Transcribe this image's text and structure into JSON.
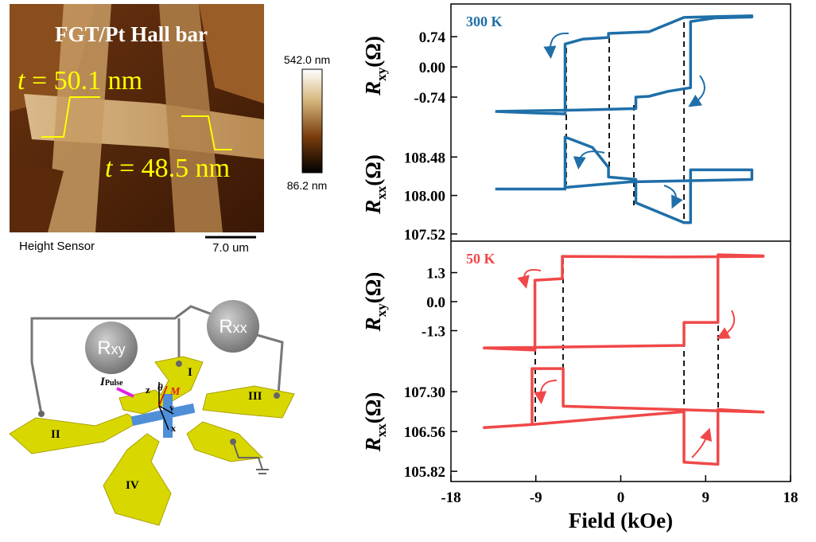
{
  "afm": {
    "title": "FGT/Pt Hall bar",
    "thickness_1": {
      "symbol": "t",
      "text": " = 50.1 nm"
    },
    "thickness_2": {
      "symbol": "t",
      "text": " = 48.5 nm"
    },
    "colorbar_max": "542.0 nm",
    "colorbar_min": "86.2 nm",
    "channel": "Height Sensor",
    "scale_bar": "7.0 um"
  },
  "device": {
    "meter_1": {
      "symbol": "R",
      "sub": "xy"
    },
    "meter_2": {
      "symbol": "R",
      "sub": "xx"
    },
    "pads": [
      "I",
      "II",
      "III",
      "IV"
    ],
    "current": {
      "symbol": "I",
      "sub": "Pulse"
    },
    "axes": {
      "z": "z",
      "theta": "θ",
      "m": "M",
      "y": "y",
      "x": "x"
    }
  },
  "chart_data": [
    {
      "type": "line",
      "annotation": "300 K",
      "annotation_color": "#1f6fa8",
      "ylabel": {
        "symbol": "R",
        "sub": "xy",
        "unit": "(Ω)"
      },
      "xlim": [
        -18,
        18
      ],
      "ylim": [
        -1.48,
        1.54
      ],
      "yticks": [
        0.74,
        {
          "value": 0,
          "label": "0.00"
        },
        -0.74
      ],
      "x": [
        -13.3,
        -9,
        -5.9,
        -5.9,
        -4,
        -1.3,
        -1.3,
        3,
        6.7,
        10,
        13.9,
        13.9,
        10,
        7.4,
        7.4,
        5,
        3,
        1.6,
        1.6,
        -5,
        -13.3
      ],
      "series": [
        {
          "color": "#1f6fa8",
          "values": [
            -1.09,
            -1.13,
            -1.15,
            0.56,
            0.68,
            0.72,
            0.82,
            0.86,
            1.21,
            1.23,
            1.25,
            1.22,
            1.2,
            1.11,
            -0.51,
            -0.6,
            -0.72,
            -0.74,
            -1.02,
            -1.06,
            -1.09
          ]
        }
      ]
    },
    {
      "type": "line",
      "ylabel": {
        "symbol": "R",
        "sub": "xx",
        "unit": "(Ω)"
      },
      "xlim": [
        -18,
        18
      ],
      "ylim": [
        107.43,
        108.85
      ],
      "yticks": [
        108.48,
        {
          "value": 108,
          "label": "108.00"
        },
        107.52
      ],
      "x": [
        -13.3,
        -5.9,
        -5.9,
        -3,
        -1.3,
        -1.3,
        1.6,
        1.6,
        6.7,
        7.4,
        7.4,
        13.9,
        13.9,
        1,
        -5.9
      ],
      "series": [
        {
          "color": "#1f6fa8",
          "values": [
            108.08,
            108.08,
            108.73,
            108.6,
            108.35,
            108.23,
            108.2,
            107.91,
            107.66,
            107.66,
            108.32,
            108.32,
            108.2,
            108.17,
            108.1
          ]
        }
      ]
    },
    {
      "type": "line",
      "annotation": "50 K",
      "annotation_color": "#f04848",
      "ylabel": {
        "symbol": "R",
        "sub": "xy",
        "unit": "(Ω)"
      },
      "xlim": [
        -18,
        18
      ],
      "ylim": [
        -2.71,
        2.71
      ],
      "yticks": [
        1.3,
        {
          "value": 0,
          "label": "0.0"
        },
        -1.3
      ],
      "x": [
        -14.6,
        -9.1,
        -9.1,
        -6.2,
        -6.2,
        5,
        15.1,
        15.1,
        10.3,
        10.3,
        6.7,
        6.7,
        -9.1,
        -14.6
      ],
      "series": [
        {
          "color": "#f04848",
          "values": [
            -2.07,
            -2.17,
            0.96,
            1.03,
            2.03,
            2.0,
            2.03,
            2.05,
            2.1,
            -0.93,
            -0.93,
            -1.96,
            -2.05,
            -2.07
          ]
        }
      ]
    },
    {
      "type": "line",
      "ylabel": {
        "symbol": "R",
        "sub": "xx",
        "unit": "(Ω)"
      },
      "xlabel": "Field (kOe)",
      "xlim": [
        -18,
        18
      ],
      "ylim": [
        105.63,
        107.85
      ],
      "yticks": [
        {
          "value": 107.3,
          "label": "107.30"
        },
        106.56,
        105.82
      ],
      "xticks": [
        -18,
        -9,
        0,
        9,
        18
      ],
      "x": [
        -14.6,
        -9.4,
        -9.4,
        -6.1,
        -6.1,
        15.1,
        15.1,
        10.3,
        10.3,
        6.7,
        6.7,
        -9.4
      ],
      "series": [
        {
          "color": "#f04848",
          "values": [
            106.63,
            106.69,
            107.73,
            107.73,
            107.03,
            106.92,
            106.92,
            106.97,
            105.95,
            105.99,
            106.93,
            106.69
          ]
        }
      ]
    }
  ]
}
